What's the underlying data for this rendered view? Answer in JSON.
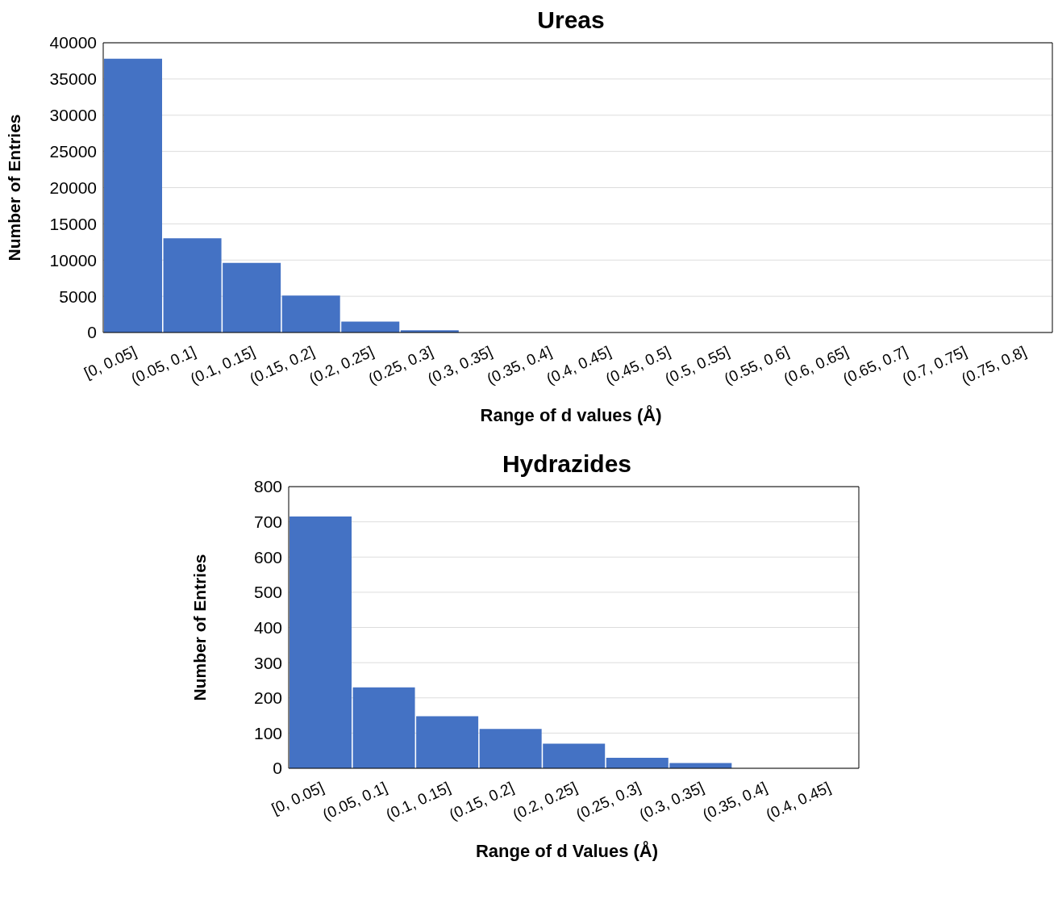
{
  "chart_data": [
    {
      "type": "bar",
      "title": "Ureas",
      "xlabel": "Range of d values (Å)",
      "ylabel": "Number of Entries",
      "categories": [
        "[0, 0.05]",
        "(0.05, 0.1]",
        "(0.1, 0.15]",
        "(0.15, 0.2]",
        "(0.2, 0.25]",
        "(0.25, 0.3]",
        "(0.3, 0.35]",
        "(0.35, 0.4]",
        "(0.4, 0.45]",
        "(0.45, 0.5]",
        "(0.5, 0.55]",
        "(0.55, 0.6]",
        "(0.6, 0.65]",
        "(0.65, 0.7]",
        "(0.7, 0.75]",
        "(0.75, 0.8]"
      ],
      "values": [
        37800,
        13000,
        9600,
        5100,
        1500,
        300,
        0,
        0,
        0,
        0,
        0,
        0,
        0,
        0,
        0,
        0
      ],
      "color": "#4472c4",
      "ylim": [
        0,
        40000
      ],
      "yticks": [
        0,
        5000,
        10000,
        15000,
        20000,
        25000,
        30000,
        35000,
        40000
      ],
      "grid": "y"
    },
    {
      "type": "bar",
      "title": "Hydrazides",
      "xlabel": "Range of d Values (Å)",
      "ylabel": "Number of Entries",
      "categories": [
        "[0, 0.05]",
        "(0.05, 0.1]",
        "(0.1, 0.15]",
        "(0.15, 0.2]",
        "(0.2, 0.25]",
        "(0.25, 0.3]",
        "(0.3, 0.35]",
        "(0.35, 0.4]",
        "(0.4, 0.45]"
      ],
      "values": [
        715,
        230,
        148,
        112,
        70,
        30,
        15,
        0,
        0
      ],
      "color": "#4472c4",
      "ylim": [
        0,
        800
      ],
      "yticks": [
        0,
        100,
        200,
        300,
        400,
        500,
        600,
        700,
        800
      ],
      "grid": "y"
    }
  ]
}
